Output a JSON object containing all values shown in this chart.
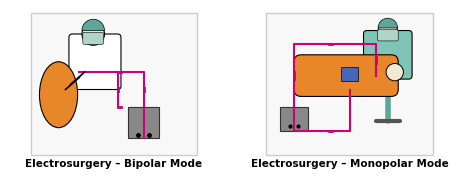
{
  "background_color": "#ffffff",
  "border_color": "#cccccc",
  "panel_bg": "#f8f8f8",
  "magenta": "#cc0077",
  "dark_gray": "#555555",
  "teal": "#5ba89a",
  "orange": "#e8872a",
  "figure_width": 4.74,
  "figure_height": 1.79,
  "label_left": "Electrosurgery – Bipolar Mode",
  "label_right": "Electrosurgery – Monopolar Mode",
  "label_fontsize": 7.5,
  "label_fontweight": "bold"
}
